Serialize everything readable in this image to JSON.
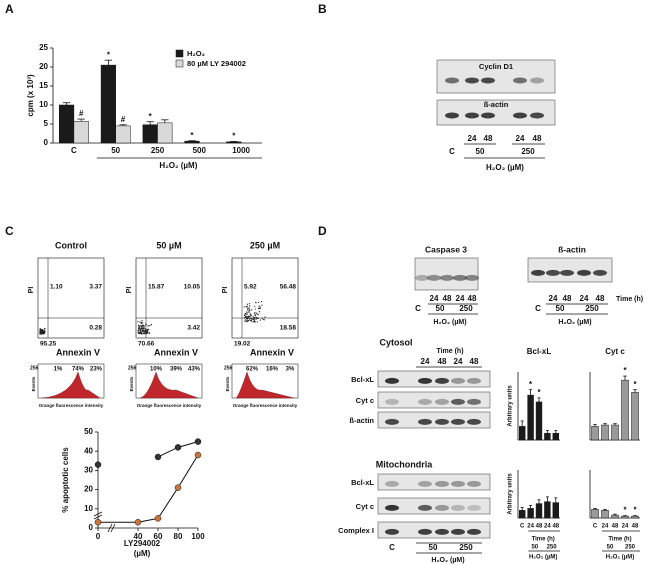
{
  "panel_labels": [
    "A",
    "B",
    "C",
    "D"
  ],
  "chart_data": [
    {
      "type": "bar",
      "y_label": "cpm (x 10³)",
      "x_label": "H₂O₂ (µM)",
      "categories": [
        "C",
        "50",
        "250",
        "500",
        "1000"
      ],
      "series": [
        {
          "name": "H₂O₂",
          "color": "#1a1a1a",
          "values": [
            10,
            20.5,
            4.8,
            0.5,
            0.3
          ],
          "errors": [
            0.6,
            1.3,
            0.8,
            0.1,
            0.1
          ],
          "markers": [
            null,
            "*",
            "*",
            "*",
            "*"
          ]
        },
        {
          "name": "80 µM LY 294002",
          "color": "#d9d9d9",
          "values": [
            5.7,
            4.5,
            5.3,
            null,
            null
          ],
          "errors": [
            0.6,
            0.3,
            0.8,
            null,
            null
          ],
          "markers": [
            "#",
            "#",
            null,
            null,
            null
          ]
        }
      ],
      "ylim": [
        0,
        25
      ],
      "yticks": [
        0,
        5,
        10,
        15,
        20,
        25
      ],
      "legend": "top-right"
    },
    {
      "type": "line",
      "y_label": "% apoptotic cells",
      "x_label": "LY294002",
      "x_unit": "(µM)",
      "x": [
        0,
        40,
        60,
        80,
        100
      ],
      "series": [
        {
          "color": "#333333",
          "values": [
            33,
            null,
            37,
            42,
            45
          ]
        },
        {
          "color": "#c8763a",
          "values": [
            3,
            3,
            5,
            21,
            38
          ]
        }
      ],
      "xlim": [
        0,
        100
      ],
      "ylim": [
        0,
        50
      ],
      "xticks": [
        0,
        40,
        60,
        80,
        100
      ],
      "yticks": [
        0,
        10,
        20,
        30,
        40,
        50
      ]
    },
    {
      "type": "bar",
      "title": "Bcl-xL",
      "y_label": "Arbitrary units",
      "categories": [
        null,
        null,
        null,
        null,
        null
      ],
      "series": [
        {
          "color": "#1a1a1a",
          "values": [
            1,
            3.3,
            2.8,
            0.5,
            0.5
          ],
          "errors": [
            0.4,
            0.4,
            0.3,
            0.2,
            0.2
          ],
          "markers": [
            null,
            "*",
            "*",
            null,
            null
          ]
        }
      ],
      "ylim": [
        0,
        5
      ]
    },
    {
      "type": "bar",
      "title": "Cyt c",
      "categories": [
        null,
        null,
        null,
        null,
        null
      ],
      "series": [
        {
          "color": "#9a9a9a",
          "values": [
            1,
            1.1,
            1.1,
            4.4,
            3.5
          ],
          "errors": [
            0.15,
            0.1,
            0.1,
            0.3,
            0.2
          ],
          "markers": [
            null,
            null,
            null,
            "*",
            "*"
          ]
        }
      ],
      "ylim": [
        0,
        5
      ]
    },
    {
      "type": "bar",
      "y_label": "Arbitrary units",
      "categories": [
        "C",
        "24",
        "48",
        "24",
        "48"
      ],
      "x_label": "Time (h)",
      "groups": [
        "50",
        "250"
      ],
      "group_label": "H₂O₂ (µM)",
      "series": [
        {
          "color": "#1a1a1a",
          "values": [
            0.8,
            1.0,
            1.5,
            1.7,
            1.6
          ],
          "errors": [
            0.3,
            0.3,
            0.4,
            0.5,
            0.5
          ],
          "markers": [
            null,
            null,
            null,
            null,
            null
          ]
        }
      ],
      "ylim": [
        0,
        5
      ]
    },
    {
      "type": "bar",
      "categories": [
        "C",
        "24",
        "48",
        "24",
        "48"
      ],
      "x_label": "Time (h)",
      "groups": [
        "50",
        "250"
      ],
      "group_label": "H₂O₂ (µM)",
      "series": [
        {
          "color": "#9a9a9a",
          "values": [
            0.9,
            0.8,
            0.3,
            0.2,
            0.2
          ],
          "errors": [
            0.1,
            0.1,
            0.1,
            0.05,
            0.05
          ],
          "markers": [
            null,
            null,
            null,
            "*",
            "*"
          ]
        }
      ],
      "ylim": [
        0,
        5
      ]
    }
  ],
  "panel_b": {
    "blots": [
      "Cyclin D1",
      "ß-actin"
    ],
    "lanes": [
      "24",
      "48",
      "24",
      "48"
    ],
    "groups": [
      "C",
      "50",
      "250"
    ],
    "x_label": "H₂O₂ (µM)"
  },
  "panel_c": {
    "y_label": "PI",
    "x_label": "Annexin V",
    "hist_y_label": "Events",
    "hist_max": "256",
    "hist_x_label": "Orange fluorescence intensity",
    "flow": [
      {
        "title": "Control",
        "quadrants": [
          "1.10",
          "3.37",
          "95.25",
          "0.28"
        ],
        "histogram": [
          "1%",
          "74%",
          "23%"
        ]
      },
      {
        "title": "50 µM",
        "quadrants": [
          "15.87",
          "10.05",
          "70.66",
          "3.42"
        ],
        "histogram": [
          "10%",
          "39%",
          "43%"
        ]
      },
      {
        "title": "250 µM",
        "quadrants": [
          "5.92",
          "56.48",
          "19.02",
          "18.58"
        ],
        "histogram": [
          "62%",
          "16%",
          "3%"
        ]
      }
    ]
  },
  "panel_d": {
    "blots": [
      "Caspase 3",
      "ß-actin"
    ],
    "lanes": [
      "24",
      "48",
      "24",
      "48"
    ],
    "groups": [
      "C",
      "50",
      "250"
    ],
    "x_label": "H₂O₂ (µM)",
    "time_label": "Time (h)",
    "cytosol": {
      "title": "Cytosol",
      "rows": [
        "Bcl-xL",
        "Cyt c",
        "ß-actin"
      ]
    },
    "mitochondria": {
      "title": "Mitochondria",
      "rows": [
        "Bcl-xL",
        "Cyt c",
        "Complex I"
      ]
    }
  }
}
